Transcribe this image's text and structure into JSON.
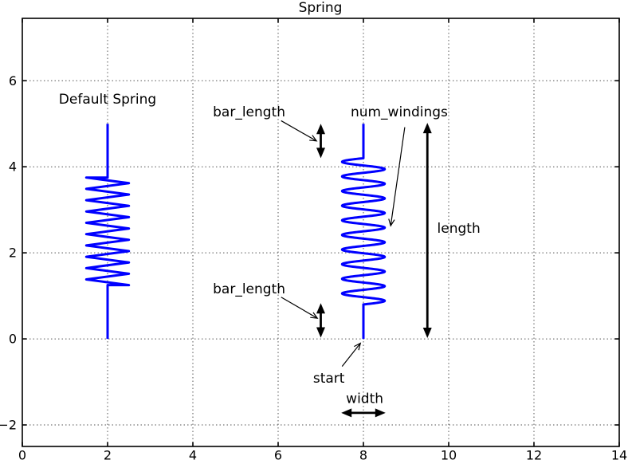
{
  "chart_data": {
    "type": "line",
    "title": "Spring",
    "xlabel": "",
    "ylabel": "",
    "xlim": [
      0,
      14
    ],
    "ylim": [
      -2.5,
      7.45
    ],
    "x_tick_values": [
      0,
      2,
      4,
      6,
      8,
      10,
      12,
      14
    ],
    "x_tick_labels": [
      "0",
      "2",
      "4",
      "6",
      "8",
      "10",
      "12",
      "14"
    ],
    "y_tick_values": [
      -2,
      0,
      2,
      4,
      6
    ],
    "y_tick_labels": [
      "−2",
      "0",
      "2",
      "4",
      "6"
    ],
    "grid": {
      "style": "dotted",
      "color": "#555555"
    },
    "axis_color": "#000000",
    "spring_color": "#0000ff",
    "annotation_color": "#000000",
    "springs": [
      {
        "name": "default-spring",
        "x": 2,
        "start": 0,
        "length": 5,
        "bar_length": 1.25,
        "width": 1,
        "num_windings": 10,
        "style": "zigzag"
      },
      {
        "name": "custom-spring",
        "x": 8,
        "start": 0,
        "length": 5,
        "bar_length": 0.8,
        "width": 1,
        "num_windings": 10,
        "style": "sine"
      }
    ],
    "dimension_arrows": [
      {
        "name": "bar-length-top-arrow",
        "x1": 7.0,
        "y1": 4.2,
        "x2": 7.0,
        "y2": 5.0
      },
      {
        "name": "bar-length-bottom-arrow",
        "x1": 7.0,
        "y1": 0.03,
        "x2": 7.0,
        "y2": 0.83
      },
      {
        "name": "length-arrow",
        "x1": 9.5,
        "y1": 0.02,
        "x2": 9.5,
        "y2": 5.02
      },
      {
        "name": "width-arrow",
        "x1": 7.48,
        "y1": -1.72,
        "x2": 8.52,
        "y2": -1.72
      }
    ],
    "annotations": [
      {
        "name": "default-spring-label",
        "text": "Default Spring",
        "x": 2.0,
        "y": 5.58,
        "anchor": "middle"
      },
      {
        "name": "bar-length-top-label",
        "text": "bar_length",
        "x": 4.47,
        "y": 5.28,
        "anchor": "start",
        "arrow": {
          "x1": 6.07,
          "y1": 5.07,
          "x2": 6.9,
          "y2": 4.6
        }
      },
      {
        "name": "num-windings-label",
        "text": "num_windings",
        "x": 7.7,
        "y": 5.28,
        "anchor": "start",
        "arrow": {
          "x1": 8.97,
          "y1": 4.92,
          "x2": 8.64,
          "y2": 2.63
        }
      },
      {
        "name": "length-label",
        "text": "length",
        "x": 9.73,
        "y": 2.58,
        "anchor": "start"
      },
      {
        "name": "bar-length-bottom-label",
        "text": "bar_length",
        "x": 4.47,
        "y": 1.17,
        "anchor": "start",
        "arrow": {
          "x1": 6.07,
          "y1": 0.97,
          "x2": 6.92,
          "y2": 0.48
        }
      },
      {
        "name": "start-label",
        "text": "start",
        "x": 6.82,
        "y": -0.91,
        "anchor": "start",
        "arrow": {
          "x1": 7.5,
          "y1": -0.64,
          "x2": 7.93,
          "y2": -0.1
        }
      },
      {
        "name": "width-label",
        "text": "width",
        "x": 8.03,
        "y": -1.38,
        "anchor": "middle"
      }
    ]
  }
}
